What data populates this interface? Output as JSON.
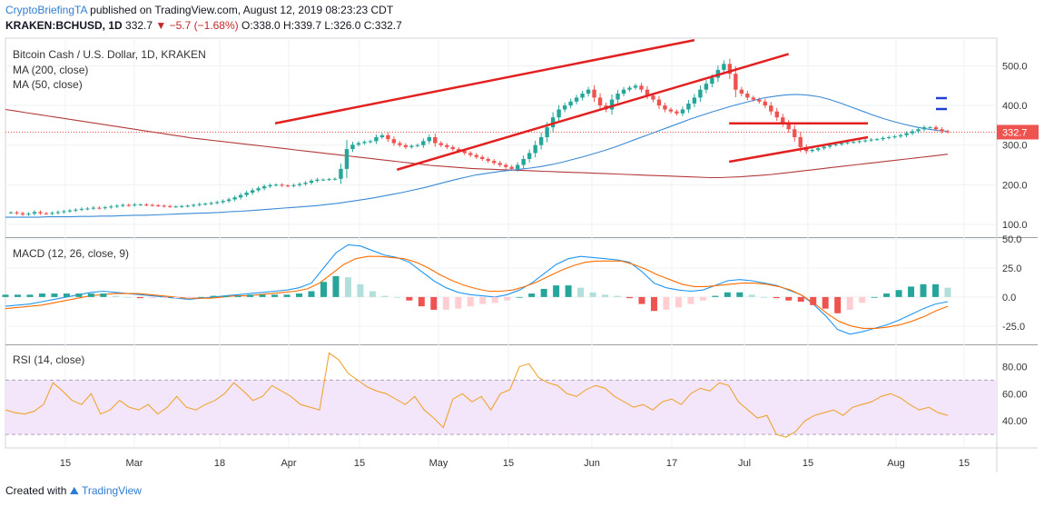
{
  "header": {
    "brand": "CryptoBriefingTA",
    "published": "published on TradingView.com, August 12, 2019 08:23:23 CDT",
    "symbol": "KRAKEN:BCHUSD, 1D",
    "price": "332.7",
    "change": "▼ −5.7 (−1.68%)",
    "ohlc": "O:338.0 H:339.7 L:326.0 C:332.7"
  },
  "footer": {
    "created_with": "Created with",
    "brand": "TradingView"
  },
  "chart_data": [
    {
      "type": "candlestick",
      "title": "Bitcoin Cash / U.S. Dollar, 1D, KRAKEN",
      "indicators": [
        "MA (200, close)",
        "MA (50, close)"
      ],
      "ylim": [
        70,
        570
      ],
      "yticks": [
        100,
        200,
        300,
        400,
        500
      ],
      "last_price": "332.7",
      "xticks": [
        "15",
        "Mar",
        "18",
        "Apr",
        "15",
        "May",
        "15",
        "Jun",
        "17",
        "Jul",
        "15",
        "Aug",
        "15"
      ],
      "closes": [
        130,
        128,
        125,
        127,
        131,
        128,
        127,
        129,
        131,
        133,
        135,
        137,
        139,
        140,
        142,
        141,
        143,
        145,
        147,
        149,
        148,
        150,
        150,
        149,
        148,
        147,
        146,
        145,
        145,
        146,
        147,
        149,
        151,
        152,
        154,
        156,
        159,
        163,
        168,
        174,
        180,
        186,
        191,
        196,
        199,
        200,
        198,
        197,
        199,
        202,
        205,
        210,
        213,
        213,
        214,
        215,
        240,
        290,
        301,
        305,
        308,
        310,
        320,
        325,
        315,
        305,
        300,
        295,
        298,
        300,
        310,
        320,
        305,
        300,
        295,
        290,
        285,
        280,
        275,
        270,
        265,
        260,
        255,
        250,
        245,
        240,
        250,
        265,
        280,
        300,
        320,
        345,
        370,
        390,
        400,
        410,
        420,
        430,
        440,
        420,
        400,
        390,
        415,
        430,
        440,
        445,
        450,
        440,
        425,
        415,
        400,
        390,
        385,
        380,
        390,
        405,
        420,
        440,
        455,
        470,
        490,
        505,
        480,
        440,
        430,
        420,
        415,
        410,
        400,
        385,
        370,
        355,
        340,
        320,
        295,
        285,
        288,
        292,
        296,
        300,
        302,
        305,
        307,
        308,
        310,
        312,
        314,
        315,
        318,
        320,
        322,
        325,
        330,
        335,
        340,
        345,
        345,
        340,
        335,
        332.7
      ],
      "ma50": [
        118,
        118,
        118,
        118,
        119,
        119,
        119,
        120,
        120,
        121,
        121,
        122,
        123,
        123,
        124,
        125,
        126,
        127,
        128,
        129,
        130,
        132,
        133,
        135,
        137,
        139,
        141,
        143,
        145,
        147,
        150,
        153,
        157,
        161,
        165,
        170,
        175,
        180,
        186,
        192,
        199,
        206,
        213,
        219,
        225,
        229,
        233,
        236,
        239,
        242,
        246,
        251,
        257,
        264,
        271,
        279,
        287,
        296,
        306,
        316,
        326,
        336,
        346,
        356,
        366,
        375,
        384,
        392,
        400,
        407,
        414,
        420,
        424,
        427,
        428,
        426,
        422,
        415,
        406,
        396,
        386,
        376,
        367,
        359,
        352,
        346,
        341,
        337,
        335
      ],
      "ma200": [
        390,
        386,
        382,
        378,
        374,
        370,
        366,
        362,
        358,
        354,
        350,
        346,
        342,
        338,
        334,
        330,
        326,
        322,
        318,
        315,
        312,
        309,
        306,
        303,
        300,
        297,
        294,
        291,
        288,
        285,
        282,
        279,
        276,
        273,
        270,
        267,
        264,
        261,
        258,
        255,
        252,
        249,
        247,
        245,
        243,
        241,
        240,
        239,
        238,
        237,
        236,
        235,
        234,
        233,
        232,
        231,
        230,
        229,
        228,
        227,
        226,
        225,
        224,
        223,
        222,
        221,
        220,
        219,
        218,
        218,
        219,
        220,
        222,
        224,
        226,
        229,
        232,
        235,
        238,
        241,
        244,
        247,
        250,
        253,
        256,
        259,
        262,
        265,
        268,
        271,
        274,
        277
      ],
      "trendlines": [
        {
          "from": [
            0.272,
            355
          ],
          "to": [
            0.695,
            565
          ]
        },
        {
          "from": [
            0.395,
            238
          ],
          "to": [
            0.79,
            530
          ]
        },
        {
          "from": [
            0.73,
            355
          ],
          "to": [
            0.87,
            355
          ]
        },
        {
          "from": [
            0.73,
            258
          ],
          "to": [
            0.87,
            320
          ]
        }
      ]
    },
    {
      "type": "line",
      "title": "MACD (12, 26, close, 9)",
      "ylim": [
        -40,
        50
      ],
      "yticks": [
        50.0,
        25.0,
        0.0,
        -25.0
      ],
      "macd": [
        -8,
        -7,
        -6,
        -4,
        -2,
        0,
        2,
        4,
        5,
        4,
        3,
        2,
        1,
        0,
        -1,
        -2,
        -1,
        0,
        1,
        2,
        3,
        4,
        5,
        6,
        8,
        12,
        25,
        38,
        45,
        44,
        40,
        36,
        34,
        30,
        22,
        14,
        8,
        4,
        2,
        1,
        0,
        2,
        6,
        12,
        20,
        28,
        33,
        35,
        34,
        33,
        32,
        30,
        22,
        12,
        8,
        6,
        5,
        6,
        10,
        14,
        15,
        14,
        12,
        10,
        6,
        2,
        -6,
        -16,
        -28,
        -32,
        -30,
        -27,
        -24,
        -20,
        -15,
        -10,
        -6,
        -4
      ],
      "signal": [
        -10,
        -9,
        -8,
        -7,
        -5,
        -3,
        -1,
        1,
        2,
        3,
        3,
        3,
        2,
        1,
        0,
        -1,
        -1,
        -1,
        0,
        1,
        1,
        2,
        3,
        4,
        5,
        7,
        12,
        20,
        28,
        33,
        35,
        35,
        34,
        33,
        30,
        25,
        19,
        14,
        10,
        7,
        5,
        5,
        6,
        9,
        13,
        18,
        23,
        27,
        30,
        31,
        31,
        31,
        28,
        24,
        19,
        15,
        11,
        9,
        9,
        10,
        11,
        12,
        12,
        11,
        9,
        6,
        1,
        -6,
        -14,
        -21,
        -25,
        -27,
        -27,
        -26,
        -24,
        -21,
        -17,
        -12,
        -8
      ]
    },
    {
      "type": "line",
      "title": "RSI (14, close)",
      "ylim": [
        20,
        95
      ],
      "yticks": [
        80.0,
        60.0,
        40.0
      ],
      "bands": [
        30,
        70
      ],
      "values": [
        48,
        46,
        45,
        47,
        52,
        68,
        62,
        55,
        52,
        60,
        45,
        48,
        55,
        50,
        48,
        52,
        45,
        50,
        58,
        50,
        48,
        52,
        55,
        60,
        68,
        62,
        55,
        58,
        66,
        62,
        58,
        52,
        50,
        48,
        90,
        85,
        75,
        70,
        65,
        62,
        60,
        56,
        52,
        58,
        48,
        42,
        35,
        56,
        60,
        54,
        58,
        48,
        60,
        63,
        80,
        82,
        72,
        68,
        66,
        60,
        58,
        63,
        66,
        64,
        58,
        54,
        50,
        52,
        48,
        54,
        56,
        52,
        60,
        64,
        62,
        68,
        66,
        54,
        48,
        42,
        44,
        30,
        28,
        32,
        40,
        44,
        46,
        48,
        44,
        50,
        52,
        54,
        58,
        60,
        57,
        52,
        48,
        50,
        46,
        44
      ]
    }
  ]
}
